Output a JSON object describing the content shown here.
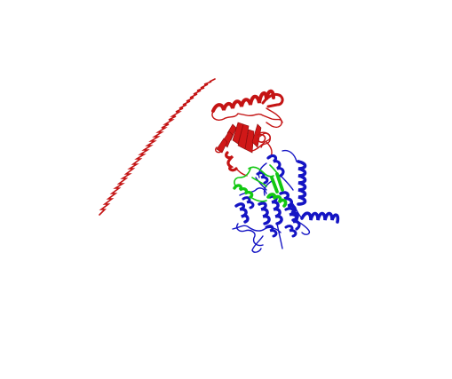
{
  "viewer": {
    "background": "#ffffff"
  },
  "structure": {
    "chains": [
      {
        "id": "A",
        "color": "#d01818",
        "role": "upper-domain-and-long-helix"
      },
      {
        "id": "B",
        "color": "#1010c8",
        "role": "lower-helical-bundle"
      },
      {
        "id": "C",
        "color": "#10d010",
        "role": "central-segment"
      }
    ]
  }
}
